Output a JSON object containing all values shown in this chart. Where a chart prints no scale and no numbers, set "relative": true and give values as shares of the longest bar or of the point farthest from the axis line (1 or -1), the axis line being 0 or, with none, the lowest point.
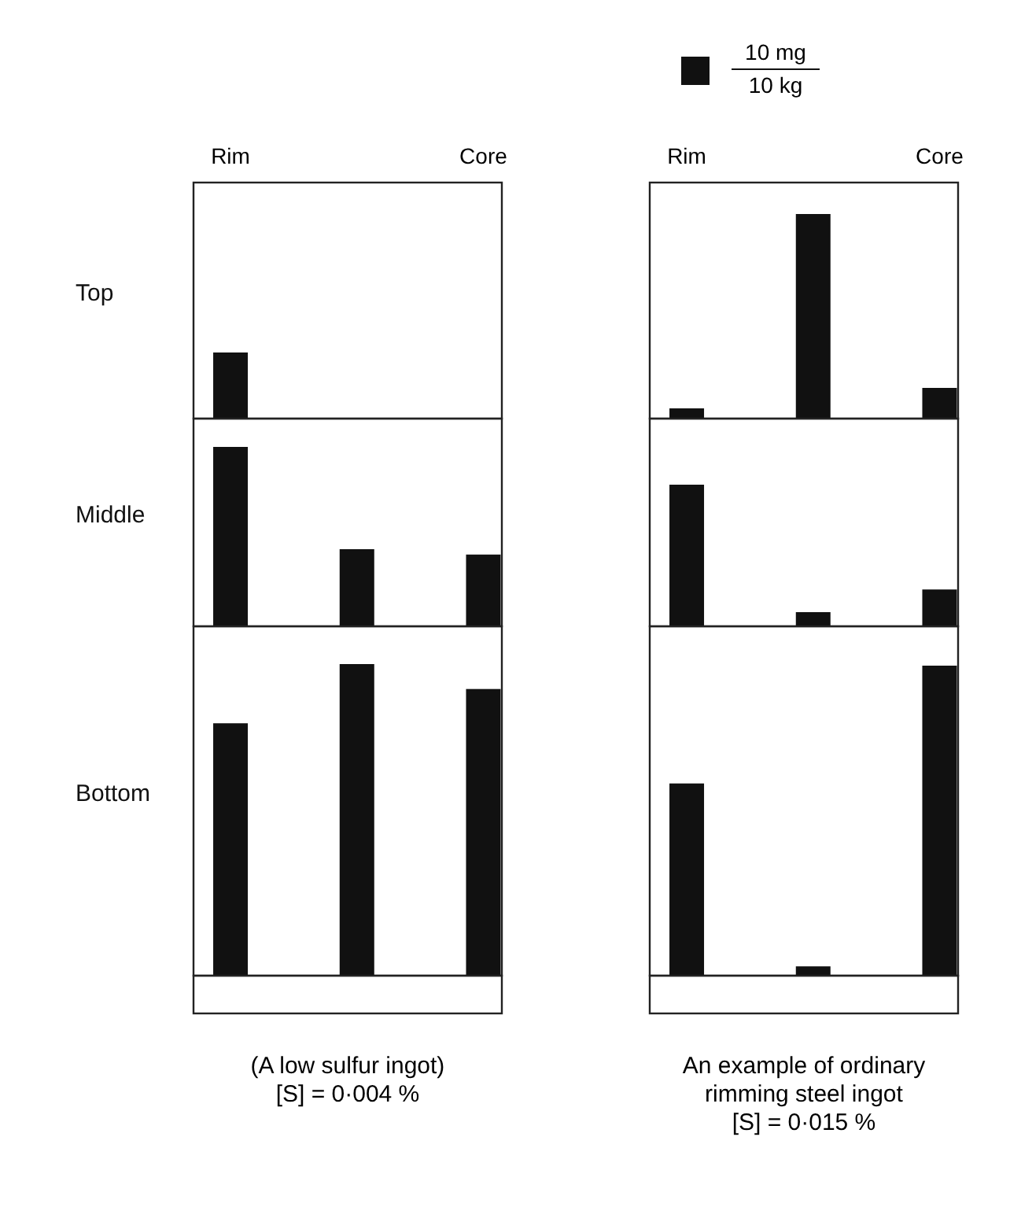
{
  "chart_data": [
    {
      "type": "bar",
      "relative": true,
      "categories": [
        "Rim",
        null,
        "Core"
      ],
      "tick_labels": "x",
      "ylabel": "Top",
      "series": [
        {
          "color": "#111111",
          "values": [
            1,
            null,
            null
          ]
        }
      ]
    },
    {
      "type": "bar",
      "relative": true,
      "categories": [
        "Rim",
        null,
        "Core"
      ],
      "tick_labels": "x",
      "series": [
        {
          "color": "#111111",
          "values": [
            0.05,
            1,
            0.15
          ]
        }
      ],
      "annotations": [
        "10 mg",
        "10 kg"
      ]
    },
    {
      "type": "bar",
      "relative": true,
      "categories": [
        null,
        null,
        null
      ],
      "tick_labels": false,
      "ylabel": "Middle",
      "series": [
        {
          "color": "#111111",
          "values": [
            1,
            0.43,
            0.4
          ]
        }
      ]
    },
    {
      "type": "bar",
      "relative": true,
      "categories": [
        null,
        null,
        null
      ],
      "tick_labels": false,
      "series": [
        {
          "color": "#111111",
          "values": [
            1,
            0.1,
            0.26
          ]
        }
      ]
    },
    {
      "type": "bar",
      "relative": true,
      "categories": [
        null,
        null,
        null
      ],
      "tick_labels": false,
      "ylabel": "Bottom",
      "series": [
        {
          "color": "#111111",
          "values": [
            0.81,
            1,
            0.92
          ]
        }
      ],
      "annotations": [
        "(A low sulfur ingot)",
        "[S] = 0·004 %"
      ]
    },
    {
      "type": "bar",
      "relative": true,
      "categories": [
        null,
        null,
        null
      ],
      "tick_labels": false,
      "series": [
        {
          "color": "#111111",
          "values": [
            0.62,
            0.03,
            1
          ]
        }
      ],
      "annotations": [
        "An example of ordinary",
        "rimming steel ingot",
        "[S] = 0·015 %"
      ]
    }
  ]
}
